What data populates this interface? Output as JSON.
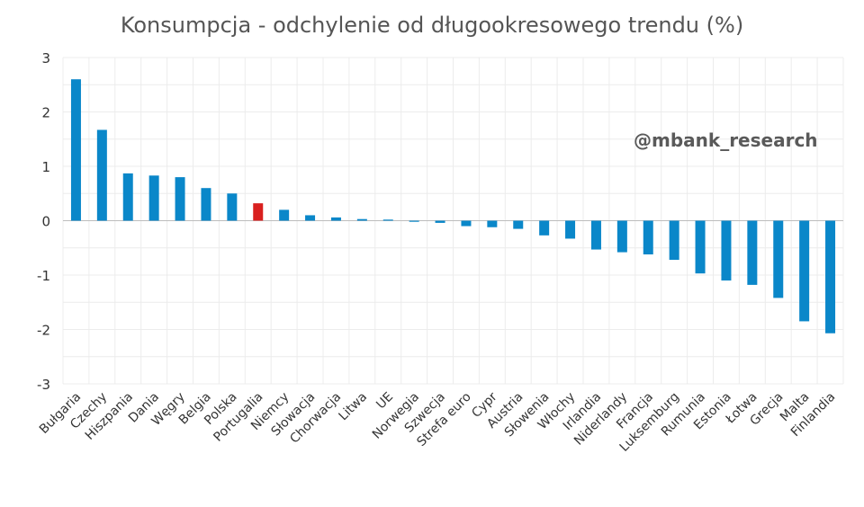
{
  "chart_data": {
    "type": "bar",
    "title": "Konsumpcja - odchylenie od długookresowego trendu (%)",
    "watermark": "@mbank_research",
    "categories": [
      "Bułgaria",
      "Czechy",
      "Hiszpania",
      "Dania",
      "Węgry",
      "Belgia",
      "Polska",
      "Portugalia",
      "Niemcy",
      "Słowacja",
      "Chorwacja",
      "Litwa",
      "UE",
      "Norwegia",
      "Szwecja",
      "Strefa euro",
      "Cypr",
      "Austria",
      "Słowenia",
      "Włochy",
      "Irlandia",
      "Niderlandy",
      "Francja",
      "Luksemburg",
      "Rumunia",
      "Estonia",
      "Łotwa",
      "Grecja",
      "Malta",
      "Finlandia"
    ],
    "values": [
      2.6,
      1.67,
      0.87,
      0.83,
      0.8,
      0.6,
      0.5,
      0.32,
      0.2,
      0.1,
      0.06,
      0.03,
      0.02,
      -0.02,
      -0.04,
      -0.1,
      -0.12,
      -0.15,
      -0.27,
      -0.33,
      -0.53,
      -0.58,
      -0.62,
      -0.72,
      -0.97,
      -1.1,
      -1.18,
      -1.42,
      -1.85,
      -2.07
    ],
    "highlight_category": "Portugalia",
    "ylim": [
      -3,
      3
    ],
    "yticks": [
      "3",
      "2",
      "1",
      "0",
      "-1",
      "-2",
      "-3"
    ],
    "xlabel": "",
    "ylabel": "",
    "grid": true,
    "legend": "none",
    "colors": {
      "bar": "#0a87c9",
      "highlight": "#d9201f",
      "grid": "#ececec",
      "zero_line": "#bdbdbd"
    }
  }
}
